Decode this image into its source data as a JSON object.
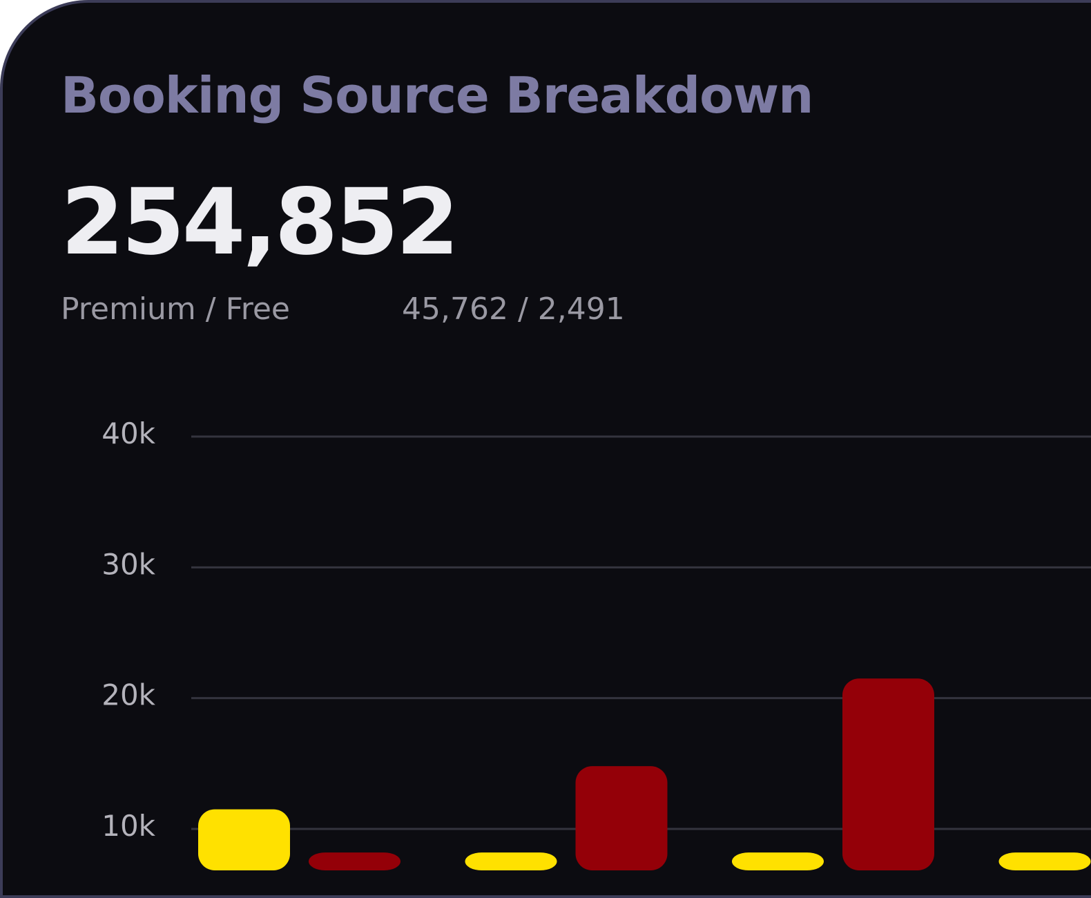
{
  "card": {
    "title": "Booking Source Breakdown",
    "total": "254,852",
    "ratio_label": "Premium / Free",
    "ratio_value": "45,762 / 2,491"
  },
  "colors": {
    "background": "#0c0c11",
    "border": "#3c3c58",
    "title": "#7d7ba3",
    "series_a": "#ffe100",
    "series_b": "#940008",
    "gridline": "#34343e"
  },
  "chart_data": {
    "type": "bar",
    "title": "",
    "xlabel": "",
    "ylabel": "",
    "ylim": [
      0,
      40000
    ],
    "y_ticks": [
      {
        "value": 10000,
        "label": "10k"
      },
      {
        "value": 20000,
        "label": "20k"
      },
      {
        "value": 30000,
        "label": "30k"
      },
      {
        "value": 40000,
        "label": "40k"
      }
    ],
    "grid": true,
    "categories": [
      "",
      "",
      "",
      ""
    ],
    "series": [
      {
        "color": "#ffe100",
        "values": [
          11500,
          8200,
          8200,
          8200
        ]
      },
      {
        "color": "#940008",
        "values": [
          8200,
          14800,
          21500,
          null
        ]
      }
    ]
  }
}
